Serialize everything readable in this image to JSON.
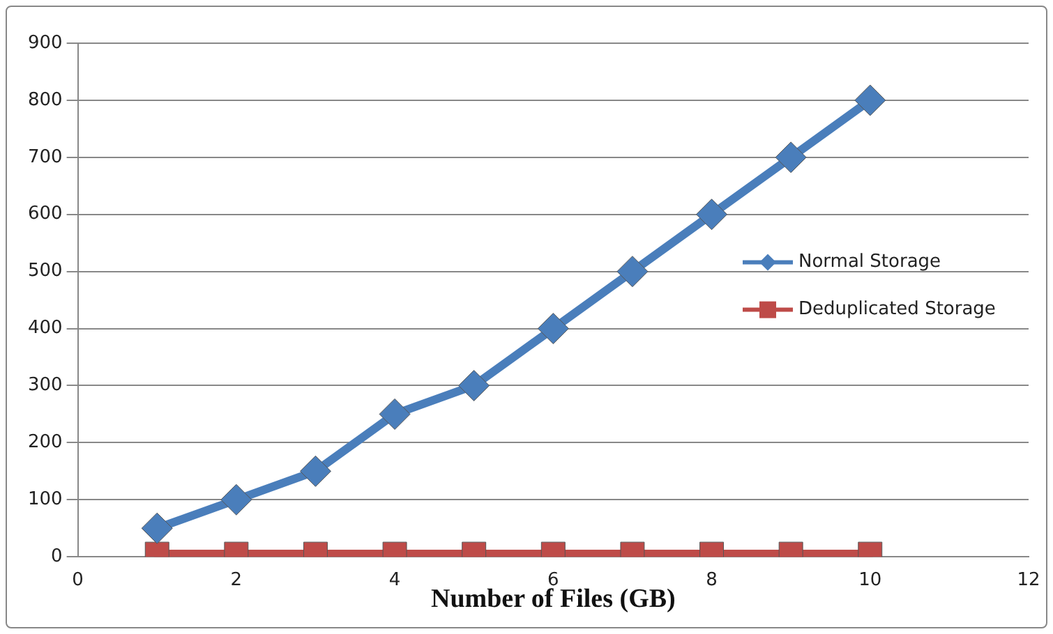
{
  "chart_data": {
    "type": "line",
    "xlabel": "Number of Files (GB)",
    "x": [
      1,
      2,
      3,
      4,
      5,
      6,
      7,
      8,
      9,
      10
    ],
    "xlim": [
      0,
      12
    ],
    "xticks": [
      0,
      2,
      4,
      6,
      8,
      10,
      12
    ],
    "ylim": [
      0,
      900
    ],
    "yticks": [
      0,
      100,
      200,
      300,
      400,
      500,
      600,
      700,
      800,
      900
    ],
    "grid": "y",
    "legend": "right",
    "series": [
      {
        "name": "Normal Storage",
        "color": "#4a7ebb",
        "marker": "diamond",
        "values": [
          50,
          100,
          150,
          250,
          300,
          400,
          500,
          600,
          700,
          800
        ]
      },
      {
        "name": "Deduplicated Storage",
        "color": "#be4b48",
        "marker": "square",
        "values": [
          5,
          5,
          5,
          5,
          5,
          5,
          5,
          5,
          5,
          5
        ]
      }
    ]
  }
}
